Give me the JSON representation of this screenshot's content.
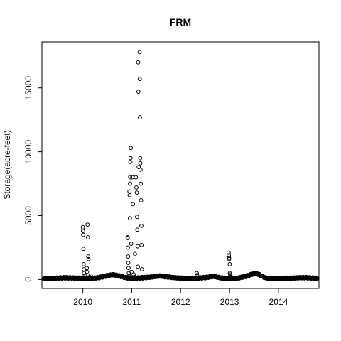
{
  "chart_data": {
    "type": "scatter",
    "title": "FRM",
    "xlabel": "",
    "ylabel": "Storage(acre-feet)",
    "x_ticks": [
      "2010",
      "2011",
      "2012",
      "2013",
      "2014"
    ],
    "y_ticks": [
      "0",
      "5000",
      "10000",
      "15000"
    ],
    "xlim": [
      "2009-03-01",
      "2014-10-31"
    ],
    "ylim": [
      -700,
      18600
    ],
    "grid": false,
    "legend": "none",
    "marker": "open-circle",
    "baseline": [
      [
        "2009-03-15",
        60
      ],
      [
        "2009-06-01",
        100
      ],
      [
        "2009-09-01",
        140
      ],
      [
        "2009-12-01",
        100
      ],
      [
        "2010-03-01",
        80
      ],
      [
        "2010-05-01",
        150
      ],
      [
        "2010-07-01",
        300
      ],
      [
        "2010-08-15",
        380
      ],
      [
        "2010-10-01",
        280
      ],
      [
        "2010-11-15",
        150
      ],
      [
        "2011-01-01",
        100
      ],
      [
        "2011-03-01",
        120
      ],
      [
        "2011-06-01",
        200
      ],
      [
        "2011-08-01",
        280
      ],
      [
        "2011-10-01",
        200
      ],
      [
        "2012-01-01",
        100
      ],
      [
        "2012-04-01",
        80
      ],
      [
        "2012-07-01",
        150
      ],
      [
        "2012-09-01",
        250
      ],
      [
        "2012-11-01",
        120
      ],
      [
        "2013-01-01",
        60
      ],
      [
        "2013-03-01",
        100
      ],
      [
        "2013-05-01",
        250
      ],
      [
        "2013-06-15",
        400
      ],
      [
        "2013-07-15",
        500
      ],
      [
        "2013-08-15",
        350
      ],
      [
        "2013-10-01",
        100
      ],
      [
        "2014-01-01",
        60
      ],
      [
        "2014-04-01",
        100
      ],
      [
        "2014-07-01",
        150
      ],
      [
        "2014-10-20",
        100
      ]
    ],
    "points": [
      [
        "2010-01-01",
        4100
      ],
      [
        "2010-01-02",
        3800
      ],
      [
        "2010-01-03",
        3500
      ],
      [
        "2010-01-05",
        2400
      ],
      [
        "2010-01-07",
        1200
      ],
      [
        "2010-01-08",
        800
      ],
      [
        "2010-01-10",
        500
      ],
      [
        "2010-01-15",
        300
      ],
      [
        "2010-01-30",
        900
      ],
      [
        "2010-02-01",
        600
      ],
      [
        "2010-02-05",
        4300
      ],
      [
        "2010-02-08",
        3300
      ],
      [
        "2010-02-10",
        1800
      ],
      [
        "2010-02-12",
        1600
      ],
      [
        "2010-02-20",
        200
      ],
      [
        "2010-03-01",
        300
      ],
      [
        "2010-12-01",
        3300
      ],
      [
        "2010-12-02",
        3250
      ],
      [
        "2010-12-03",
        2500
      ],
      [
        "2010-12-05",
        1800
      ],
      [
        "2010-12-06",
        1300
      ],
      [
        "2010-12-08",
        900
      ],
      [
        "2010-12-10",
        500
      ],
      [
        "2010-12-12",
        300
      ],
      [
        "2010-12-15",
        6900
      ],
      [
        "2010-12-16",
        6600
      ],
      [
        "2010-12-18",
        4800
      ],
      [
        "2010-12-19",
        7500
      ],
      [
        "2010-12-20",
        8000
      ],
      [
        "2010-12-22",
        9200
      ],
      [
        "2010-12-23",
        9500
      ],
      [
        "2010-12-25",
        10300
      ],
      [
        "2010-12-28",
        2800
      ],
      [
        "2010-12-30",
        600
      ],
      [
        "2011-01-05",
        8000
      ],
      [
        "2011-01-10",
        5900
      ],
      [
        "2011-01-15",
        400
      ],
      [
        "2011-01-20",
        200
      ],
      [
        "2011-01-25",
        2000
      ],
      [
        "2011-02-01",
        8000
      ],
      [
        "2011-02-05",
        7200
      ],
      [
        "2011-02-08",
        6800
      ],
      [
        "2011-02-10",
        4900
      ],
      [
        "2011-02-12",
        3900
      ],
      [
        "2011-02-14",
        2600
      ],
      [
        "2011-02-16",
        1000
      ],
      [
        "2011-02-18",
        17000
      ],
      [
        "2011-02-20",
        14700
      ],
      [
        "2011-02-22",
        8800
      ],
      [
        "2011-03-01",
        17800
      ],
      [
        "2011-03-02",
        15700
      ],
      [
        "2011-03-03",
        12700
      ],
      [
        "2011-03-05",
        9500
      ],
      [
        "2011-03-06",
        9100
      ],
      [
        "2011-03-08",
        8600
      ],
      [
        "2011-03-10",
        7500
      ],
      [
        "2011-03-12",
        6200
      ],
      [
        "2011-03-14",
        4200
      ],
      [
        "2011-03-15",
        2700
      ],
      [
        "2011-03-18",
        800
      ],
      [
        "2011-03-22",
        200
      ],
      [
        "2012-05-01",
        500
      ],
      [
        "2012-05-03",
        350
      ],
      [
        "2012-12-25",
        2100
      ],
      [
        "2012-12-26",
        1900
      ],
      [
        "2012-12-28",
        1700
      ],
      [
        "2012-12-29",
        1600
      ],
      [
        "2013-01-02",
        1200
      ],
      [
        "2013-01-03",
        500
      ],
      [
        "2013-01-05",
        400
      ],
      [
        "2013-01-08",
        300
      ],
      [
        "2013-01-12",
        200
      ]
    ]
  }
}
